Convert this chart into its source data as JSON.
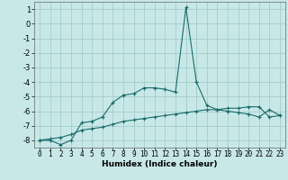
{
  "xlabel": "Humidex (Indice chaleur)",
  "ylabel": "",
  "background_color": "#c8e8e8",
  "grid_color": "#aacfcf",
  "line_color": "#1a6b6b",
  "x": [
    0,
    1,
    2,
    3,
    4,
    5,
    6,
    7,
    8,
    9,
    10,
    11,
    12,
    13,
    14,
    15,
    16,
    17,
    18,
    19,
    20,
    21,
    22,
    23
  ],
  "y_line1": [
    -8.0,
    -8.0,
    -8.3,
    -8.0,
    -6.8,
    -6.7,
    -6.4,
    -5.4,
    -4.9,
    -4.8,
    -4.4,
    -4.4,
    -4.5,
    -4.7,
    1.1,
    -4.0,
    -5.6,
    -5.9,
    -6.0,
    -6.1,
    -6.2,
    -6.4,
    -5.9,
    -6.3
  ],
  "y_line2": [
    -8.0,
    -7.9,
    -7.8,
    -7.6,
    -7.3,
    -7.2,
    -7.1,
    -6.9,
    -6.7,
    -6.6,
    -6.5,
    -6.4,
    -6.3,
    -6.2,
    -6.1,
    -6.0,
    -5.9,
    -5.9,
    -5.8,
    -5.8,
    -5.7,
    -5.7,
    -6.4,
    -6.3
  ],
  "ylim": [
    -8.5,
    1.5
  ],
  "yticks": [
    1,
    0,
    -1,
    -2,
    -3,
    -4,
    -5,
    -6,
    -7,
    -8
  ],
  "xlim": [
    -0.5,
    23.5
  ],
  "xticks": [
    0,
    1,
    2,
    3,
    4,
    5,
    6,
    7,
    8,
    9,
    10,
    11,
    12,
    13,
    14,
    15,
    16,
    17,
    18,
    19,
    20,
    21,
    22,
    23
  ],
  "xlabel_fontsize": 6.5,
  "tick_fontsize": 5.5,
  "ytick_fontsize": 6.0
}
